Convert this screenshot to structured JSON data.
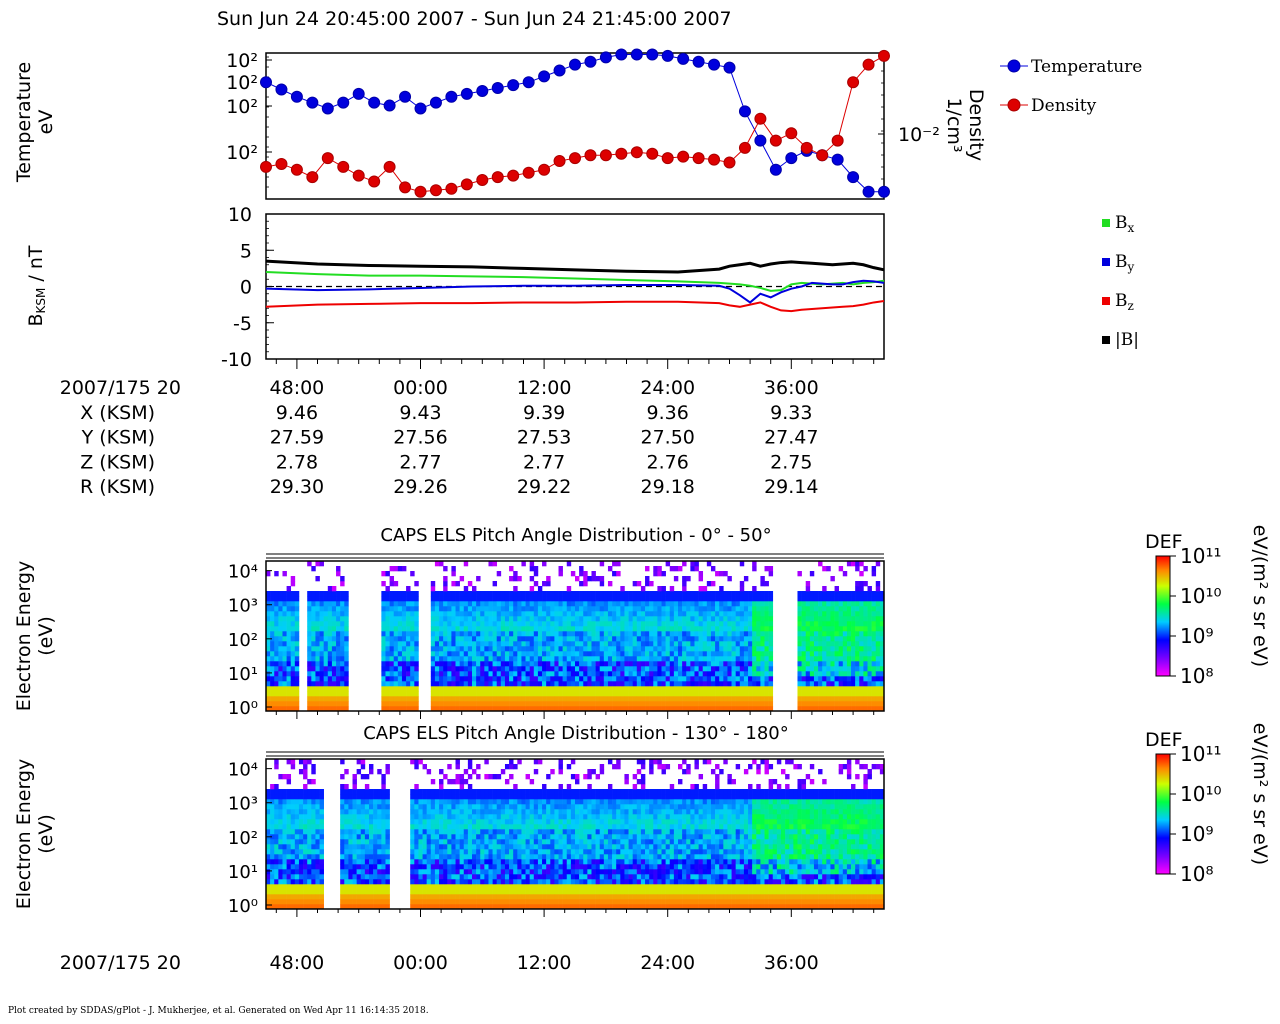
{
  "header": {
    "title": "Sun Jun 24 20:45:00 2007 - Sun Jun 24 21:45:00 2007"
  },
  "footer": {
    "text": "Plot created by SDDAS/gPlot - J. Mukherjee, et al.  Generated on Wed Apr 11 16:14:35 2018."
  },
  "colors": {
    "temperature": "#0000dd",
    "density": "#dd0000",
    "bx": "#22dd22",
    "by": "#0000dd",
    "bz": "#ee0000",
    "btot": "#000000"
  },
  "chart_data": [
    {
      "type": "line",
      "name": "moments",
      "ylabel": [
        "Temperature",
        "eV"
      ],
      "y2label": [
        "Density",
        "1/cm³"
      ],
      "y_ticks": [
        "10²",
        "10²",
        "10²",
        "10²"
      ],
      "y2_ticks": [
        "10⁻²"
      ],
      "xlim": [
        45,
        105
      ],
      "legend": {
        "placement": "right",
        "entries": [
          "Temperature",
          "Density"
        ]
      },
      "series": [
        {
          "name": "Temperature",
          "x": [
            45.0,
            46.5,
            48.0,
            49.5,
            51.0,
            52.5,
            54.0,
            55.5,
            57.0,
            58.5,
            60.0,
            61.5,
            63.0,
            64.5,
            66.0,
            67.5,
            69.0,
            70.5,
            72.0,
            73.5,
            75.0,
            76.5,
            78.0,
            79.5,
            81.0,
            82.5,
            84.0,
            85.5,
            87.0,
            88.5,
            90.0,
            91.5,
            93.0,
            94.5,
            96.0,
            97.5,
            99.0,
            100.5,
            102.0,
            103.5,
            105.0
          ],
          "y": [
            0.8,
            0.75,
            0.7,
            0.66,
            0.62,
            0.66,
            0.72,
            0.66,
            0.64,
            0.7,
            0.62,
            0.66,
            0.7,
            0.72,
            0.74,
            0.76,
            0.78,
            0.8,
            0.84,
            0.88,
            0.92,
            0.94,
            0.97,
            0.99,
            0.99,
            0.99,
            0.98,
            0.96,
            0.94,
            0.92,
            0.9,
            0.6,
            0.4,
            0.2,
            0.28,
            0.33,
            0.3,
            0.27,
            0.15,
            0.05,
            0.05
          ]
        },
        {
          "name": "Density",
          "x": [
            45.0,
            46.5,
            48.0,
            49.5,
            51.0,
            52.5,
            54.0,
            55.5,
            57.0,
            58.5,
            60.0,
            61.5,
            63.0,
            64.5,
            66.0,
            67.5,
            69.0,
            70.5,
            72.0,
            73.5,
            75.0,
            76.5,
            78.0,
            79.5,
            81.0,
            82.5,
            84.0,
            85.5,
            87.0,
            88.5,
            90.0,
            91.5,
            93.0,
            94.5,
            96.0,
            97.5,
            99.0,
            100.5,
            102.0,
            103.5,
            105.0
          ],
          "y": [
            0.22,
            0.24,
            0.2,
            0.15,
            0.28,
            0.22,
            0.16,
            0.12,
            0.22,
            0.08,
            0.05,
            0.06,
            0.07,
            0.1,
            0.13,
            0.15,
            0.16,
            0.18,
            0.2,
            0.26,
            0.28,
            0.3,
            0.3,
            0.31,
            0.32,
            0.31,
            0.28,
            0.29,
            0.28,
            0.27,
            0.25,
            0.35,
            0.55,
            0.4,
            0.45,
            0.35,
            0.3,
            0.4,
            0.8,
            0.92,
            0.98
          ]
        }
      ]
    },
    {
      "type": "line",
      "name": "magnetic-field",
      "ylabel": "B_KSM / nT",
      "ylim": [
        -10,
        10
      ],
      "y_ticks": [
        "10",
        "5",
        "0",
        "-5",
        "-10"
      ],
      "xlim": [
        45,
        105
      ],
      "legend": {
        "placement": "right",
        "entries": [
          "Bx",
          "By",
          "Bz",
          "|B|"
        ]
      },
      "series": [
        {
          "name": "Bx",
          "x": [
            45,
            50,
            55,
            60,
            65,
            70,
            75,
            80,
            85,
            89,
            90,
            91,
            92,
            93,
            94,
            95,
            96,
            97,
            98,
            99,
            100,
            101,
            102,
            103,
            104,
            105
          ],
          "y": [
            2.0,
            1.7,
            1.5,
            1.5,
            1.4,
            1.3,
            1.1,
            0.9,
            0.7,
            0.5,
            0.4,
            0.3,
            0.1,
            -0.2,
            -0.6,
            -0.5,
            0.3,
            0.5,
            0.4,
            0.3,
            0.4,
            0.5,
            0.3,
            0.5,
            0.6,
            0.8
          ]
        },
        {
          "name": "By",
          "x": [
            45,
            50,
            55,
            60,
            65,
            70,
            75,
            80,
            85,
            89,
            90,
            91,
            92,
            93,
            94,
            95,
            96,
            97,
            98,
            99,
            100,
            101,
            102,
            103,
            104,
            105
          ],
          "y": [
            -0.3,
            -0.5,
            -0.4,
            -0.2,
            0.0,
            0.1,
            0.1,
            0.2,
            0.2,
            0.1,
            -0.3,
            -1.2,
            -2.2,
            -1.0,
            -1.5,
            -0.8,
            -0.3,
            0.0,
            0.5,
            0.4,
            0.3,
            0.3,
            0.6,
            0.8,
            0.7,
            0.5
          ]
        },
        {
          "name": "Bz",
          "x": [
            45,
            50,
            55,
            60,
            65,
            70,
            75,
            80,
            85,
            89,
            90,
            91,
            92,
            93,
            94,
            95,
            96,
            97,
            98,
            99,
            100,
            101,
            102,
            103,
            104,
            105
          ],
          "y": [
            -2.8,
            -2.5,
            -2.4,
            -2.3,
            -2.3,
            -2.2,
            -2.2,
            -2.1,
            -2.1,
            -2.3,
            -2.6,
            -2.8,
            -2.5,
            -2.2,
            -2.8,
            -3.3,
            -3.4,
            -3.2,
            -3.1,
            -3.0,
            -2.9,
            -2.8,
            -2.7,
            -2.5,
            -2.2,
            -2.0
          ]
        },
        {
          "name": "|B|",
          "x": [
            45,
            50,
            55,
            60,
            65,
            70,
            75,
            80,
            85,
            89,
            90,
            91,
            92,
            93,
            94,
            95,
            96,
            97,
            98,
            99,
            100,
            101,
            102,
            103,
            104,
            105
          ],
          "y": [
            3.5,
            3.1,
            2.9,
            2.8,
            2.7,
            2.5,
            2.3,
            2.1,
            2.0,
            2.4,
            2.8,
            3.0,
            3.2,
            2.8,
            3.1,
            3.3,
            3.4,
            3.3,
            3.2,
            3.1,
            3.0,
            3.1,
            3.2,
            3.0,
            2.6,
            2.3
          ]
        }
      ]
    },
    {
      "type": "heatmap",
      "name": "pad-0-50",
      "title": "CAPS ELS Pitch Angle Distribution - 0° - 50°",
      "ylabel": [
        "Electron Energy",
        "(eV)"
      ],
      "y_ticks": [
        "10⁴",
        "10³",
        "10²",
        "10¹",
        "10⁰"
      ],
      "colorbar": {
        "title": "DEF",
        "ticks": [
          "10¹¹",
          "10¹⁰",
          "10⁹",
          "10⁸"
        ],
        "unit": "eV/(m² s sr eV)"
      },
      "gaps_min": [
        [
          48.2,
          48.8
        ],
        [
          53.0,
          56.2
        ],
        [
          59.8,
          61.0
        ],
        [
          94.2,
          96.4
        ]
      ],
      "xlim": [
        45,
        105
      ]
    },
    {
      "type": "heatmap",
      "name": "pad-130-180",
      "title": "CAPS ELS Pitch Angle Distribution - 130° - 180°",
      "ylabel": [
        "Electron Energy",
        "(eV)"
      ],
      "y_ticks": [
        "10⁴",
        "10³",
        "10²",
        "10¹",
        "10⁰"
      ],
      "colorbar": {
        "title": "DEF",
        "ticks": [
          "10¹¹",
          "10¹⁰",
          "10⁹",
          "10⁸"
        ],
        "unit": "eV/(m² s sr eV)"
      },
      "gaps_min": [
        [
          50.5,
          52.0
        ],
        [
          57.2,
          59.0
        ]
      ],
      "xlim": [
        45,
        105
      ]
    }
  ],
  "ephemeris": {
    "time_label": "2007/175 20",
    "row_labels": [
      "X (KSM)",
      "Y (KSM)",
      "Z (KSM)",
      "R (KSM)"
    ],
    "columns": [
      {
        "time": "48:00",
        "values": [
          "9.46",
          "27.59",
          "2.78",
          "29.30"
        ]
      },
      {
        "time": "00:00",
        "values": [
          "9.43",
          "27.56",
          "2.77",
          "29.26"
        ]
      },
      {
        "time": "12:00",
        "values": [
          "9.39",
          "27.53",
          "2.77",
          "29.22"
        ]
      },
      {
        "time": "24:00",
        "values": [
          "9.36",
          "27.50",
          "2.76",
          "29.18"
        ]
      },
      {
        "time": "36:00",
        "values": [
          "9.33",
          "27.47",
          "2.75",
          "29.14"
        ]
      }
    ]
  },
  "bottom_axis": {
    "time_label": "2007/175 20",
    "ticks": [
      "48:00",
      "00:00",
      "12:00",
      "24:00",
      "36:00"
    ]
  }
}
